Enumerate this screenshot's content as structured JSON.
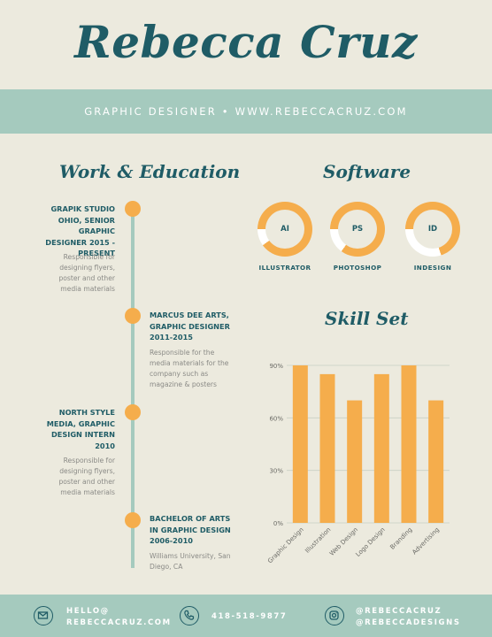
{
  "header": {
    "name": "Rebecca Cruz",
    "tagline": "GRAPHIC DESIGNER • WWW.REBECCACRUZ.COM"
  },
  "work": {
    "title": "Work & Education",
    "entries": [
      {
        "title": "GRAPIK STUDIO OHIO, SENIOR GRAPHIC DESIGNER 2015 - PRESENT",
        "desc": "Responsible for designing flyers, poster and other media materials"
      },
      {
        "title": "MARCUS DEE ARTS, GRAPHIC DESIGNER 2011-2015",
        "desc": "Responsible for the media materials for the company such as magazine & posters"
      },
      {
        "title": "NORTH STYLE MEDIA, GRAPHIC DESIGN INTERN 2010",
        "desc": "Responsible for designing flyers, poster and other media materials"
      },
      {
        "title": "BACHELOR OF ARTS IN GRAPHIC DESIGN 2006-2010",
        "desc": "Williams University, San Diego, CA"
      }
    ]
  },
  "software": {
    "title": "Software",
    "items": [
      {
        "abbr": "AI",
        "label": "ILLUSTRATOR",
        "level": 0.9
      },
      {
        "abbr": "PS",
        "label": "PHOTOSHOP",
        "level": 0.85
      },
      {
        "abbr": "ID",
        "label": "INDESIGN",
        "level": 0.7
      }
    ]
  },
  "skills": {
    "title": "Skill Set"
  },
  "chart_data": {
    "type": "bar",
    "title": "Skill Set",
    "categories": [
      "Graphic Design",
      "Illustration",
      "Web Design",
      "Logo Design",
      "Branding",
      "Advertising"
    ],
    "values": [
      90,
      85,
      70,
      85,
      90,
      70
    ],
    "yticks": [
      "0%",
      "30%",
      "60%",
      "90%"
    ],
    "ylim": [
      0,
      90
    ],
    "grid": true,
    "bar_color": "#f5ad4c"
  },
  "footer": {
    "email_line1": "HELLO@",
    "email_line2": "REBECCACRUZ.COM",
    "phone": "418-518-9877",
    "social_line1": "@REBECCACRUZ",
    "social_line2": "@REBECCADESIGNS"
  },
  "colors": {
    "primary": "#1f5c66",
    "accent": "#f5ad4c",
    "band": "#a5cabe",
    "background": "#eceade"
  }
}
